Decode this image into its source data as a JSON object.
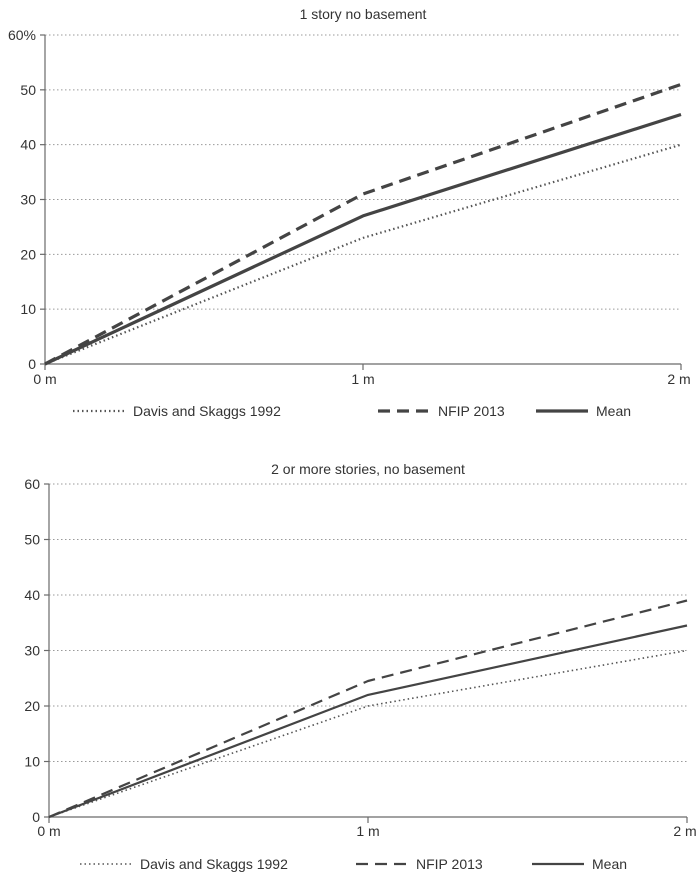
{
  "chart_data": [
    {
      "type": "line",
      "title": "1 story no basement",
      "x": [
        0,
        1,
        2
      ],
      "xtick_labels": [
        "0 m",
        "1 m",
        "2 m"
      ],
      "ytick_labels": [
        "0",
        "10",
        "20",
        "30",
        "40",
        "50",
        "60%"
      ],
      "ylim": [
        0,
        60
      ],
      "grid": true,
      "legend": "bottom",
      "series": [
        {
          "name": "Davis and  Skaggs 1992",
          "values": [
            0,
            23,
            40
          ],
          "style": "dotted",
          "color": "#555555"
        },
        {
          "name": "NFIP 2013",
          "values": [
            0,
            31,
            51
          ],
          "style": "dashed",
          "color": "#444444"
        },
        {
          "name": "Mean",
          "values": [
            0,
            27,
            45.5
          ],
          "style": "solid",
          "color": "#444444"
        }
      ]
    },
    {
      "type": "line",
      "title": "2 or more stories, no basement",
      "x": [
        0,
        1,
        2
      ],
      "xtick_labels": [
        "0 m",
        "1 m",
        "2 m"
      ],
      "ytick_labels": [
        "0",
        "10",
        "20",
        "30",
        "40",
        "50",
        "60"
      ],
      "ylim": [
        0,
        60
      ],
      "grid": true,
      "legend": "bottom",
      "series": [
        {
          "name": "Davis and Skaggs 1992",
          "values": [
            0,
            20,
            30
          ],
          "style": "dotted",
          "color": "#555555"
        },
        {
          "name": "NFIP 2013",
          "values": [
            0,
            24.5,
            39
          ],
          "style": "dashed",
          "color": "#444444"
        },
        {
          "name": "Mean",
          "values": [
            0,
            22,
            34.5
          ],
          "style": "solid",
          "color": "#444444"
        }
      ]
    }
  ]
}
